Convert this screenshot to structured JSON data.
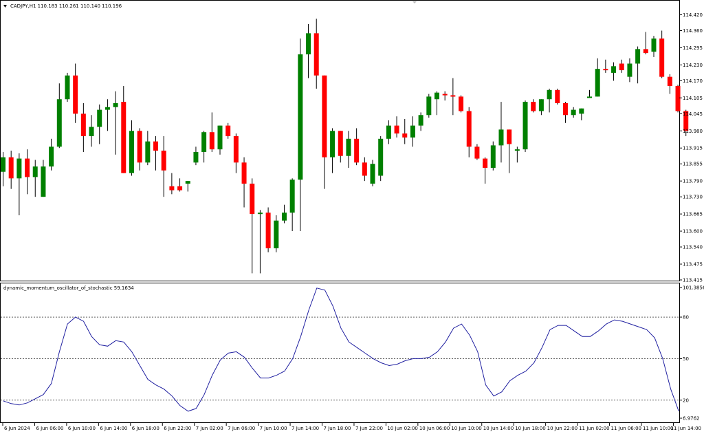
{
  "header": {
    "symbol_line": "CADJPY,H1  110.183 110.261 110.140 110.196"
  },
  "indicator": {
    "title": "dynamic_momentum_oscillator_of_stochastic 59.1634"
  },
  "colors": {
    "bull": "#008000",
    "bear": "#ff0000",
    "wick": "#000000",
    "line": "#1f1fa0",
    "grid": "#000000",
    "background": "#ffffff"
  },
  "chart_data": [
    {
      "type": "candlestick",
      "ylim": [
        113.415,
        114.45
      ],
      "y_ticks": [
        "114.420",
        "114.360",
        "114.295",
        "114.230",
        "114.170",
        "114.105",
        "114.045",
        "113.980",
        "113.915",
        "113.855",
        "113.790",
        "113.730",
        "113.665",
        "113.600",
        "113.540",
        "113.475",
        "113.415"
      ],
      "x_labels": [
        "6 Jun 2024",
        "6 Jun 06:00",
        "6 Jun 10:00",
        "6 Jun 14:00",
        "6 Jun 18:00",
        "6 Jun 22:00",
        "7 Jun 02:00",
        "7 Jun 06:00",
        "7 Jun 10:00",
        "7 Jun 14:00",
        "7 Jun 18:00",
        "7 Jun 22:00",
        "10 Jun 02:00",
        "10 Jun 06:00",
        "10 Jun 10:00",
        "10 Jun 14:00",
        "10 Jun 18:00",
        "10 Jun 22:00",
        "11 Jun 02:00",
        "11 Jun 06:00",
        "11 Jun 10:00",
        "11 Jun 14:00"
      ],
      "candles": [
        {
          "o": 113.825,
          "h": 113.9,
          "l": 113.77,
          "c": 113.88
        },
        {
          "o": 113.88,
          "h": 113.905,
          "l": 113.76,
          "c": 113.8
        },
        {
          "o": 113.8,
          "h": 113.895,
          "l": 113.66,
          "c": 113.875
        },
        {
          "o": 113.875,
          "h": 113.91,
          "l": 113.74,
          "c": 113.805
        },
        {
          "o": 113.805,
          "h": 113.87,
          "l": 113.73,
          "c": 113.845
        },
        {
          "o": 113.73,
          "h": 113.87,
          "l": 113.73,
          "c": 113.845
        },
        {
          "o": 113.845,
          "h": 113.95,
          "l": 113.83,
          "c": 113.92
        },
        {
          "o": 113.92,
          "h": 114.16,
          "l": 113.915,
          "c": 114.1
        },
        {
          "o": 114.1,
          "h": 114.2,
          "l": 114.09,
          "c": 114.19
        },
        {
          "o": 114.19,
          "h": 114.235,
          "l": 114.01,
          "c": 114.045
        },
        {
          "o": 114.045,
          "h": 114.085,
          "l": 113.9,
          "c": 113.96
        },
        {
          "o": 113.96,
          "h": 114.04,
          "l": 113.92,
          "c": 113.995
        },
        {
          "o": 113.995,
          "h": 114.08,
          "l": 113.93,
          "c": 114.06
        },
        {
          "o": 114.06,
          "h": 114.1,
          "l": 113.98,
          "c": 114.07
        },
        {
          "o": 114.07,
          "h": 114.13,
          "l": 113.89,
          "c": 114.085
        },
        {
          "o": 114.09,
          "h": 114.15,
          "l": 113.82,
          "c": 113.82
        },
        {
          "o": 113.82,
          "h": 114.02,
          "l": 113.81,
          "c": 113.98
        },
        {
          "o": 113.98,
          "h": 113.99,
          "l": 113.83,
          "c": 113.86
        },
        {
          "o": 113.86,
          "h": 113.98,
          "l": 113.85,
          "c": 113.94
        },
        {
          "o": 113.94,
          "h": 113.96,
          "l": 113.83,
          "c": 113.905
        },
        {
          "o": 113.905,
          "h": 113.96,
          "l": 113.73,
          "c": 113.83
        },
        {
          "o": 113.77,
          "h": 113.82,
          "l": 113.74,
          "c": 113.755
        },
        {
          "o": 113.77,
          "h": 113.8,
          "l": 113.75,
          "c": 113.755
        },
        {
          "o": 113.78,
          "h": 113.79,
          "l": 113.75,
          "c": 113.79
        },
        {
          "o": 113.86,
          "h": 113.92,
          "l": 113.85,
          "c": 113.9
        },
        {
          "o": 113.9,
          "h": 113.98,
          "l": 113.86,
          "c": 113.975
        },
        {
          "o": 113.975,
          "h": 114.05,
          "l": 113.9,
          "c": 113.91
        },
        {
          "o": 113.91,
          "h": 114.0,
          "l": 113.89,
          "c": 114.0
        },
        {
          "o": 114.0,
          "h": 114.01,
          "l": 113.95,
          "c": 113.96
        },
        {
          "o": 113.96,
          "h": 113.97,
          "l": 113.82,
          "c": 113.86
        },
        {
          "o": 113.86,
          "h": 113.88,
          "l": 113.69,
          "c": 113.78
        },
        {
          "o": 113.78,
          "h": 113.8,
          "l": 113.44,
          "c": 113.665
        },
        {
          "o": 113.665,
          "h": 113.68,
          "l": 113.44,
          "c": 113.67
        },
        {
          "o": 113.67,
          "h": 113.69,
          "l": 113.52,
          "c": 113.535
        },
        {
          "o": 113.535,
          "h": 113.66,
          "l": 113.52,
          "c": 113.64
        },
        {
          "o": 113.64,
          "h": 113.7,
          "l": 113.63,
          "c": 113.67
        },
        {
          "o": 113.67,
          "h": 113.8,
          "l": 113.6,
          "c": 113.795
        },
        {
          "o": 113.795,
          "h": 114.33,
          "l": 113.6,
          "c": 114.27
        },
        {
          "o": 114.27,
          "h": 114.385,
          "l": 114.18,
          "c": 114.35
        },
        {
          "o": 114.35,
          "h": 114.405,
          "l": 114.14,
          "c": 114.19
        },
        {
          "o": 114.19,
          "h": 114.19,
          "l": 113.76,
          "c": 113.88
        },
        {
          "o": 113.88,
          "h": 113.99,
          "l": 113.82,
          "c": 113.98
        },
        {
          "o": 113.98,
          "h": 113.98,
          "l": 113.86,
          "c": 113.885
        },
        {
          "o": 113.885,
          "h": 113.98,
          "l": 113.84,
          "c": 113.95
        },
        {
          "o": 113.95,
          "h": 113.99,
          "l": 113.85,
          "c": 113.86
        },
        {
          "o": 113.86,
          "h": 113.88,
          "l": 113.79,
          "c": 113.81
        },
        {
          "o": 113.78,
          "h": 113.87,
          "l": 113.77,
          "c": 113.855
        },
        {
          "o": 113.81,
          "h": 113.96,
          "l": 113.79,
          "c": 113.95
        },
        {
          "o": 113.95,
          "h": 114.02,
          "l": 113.93,
          "c": 114.0
        },
        {
          "o": 114.0,
          "h": 114.035,
          "l": 113.955,
          "c": 113.97
        },
        {
          "o": 113.97,
          "h": 114.025,
          "l": 113.93,
          "c": 113.955
        },
        {
          "o": 113.955,
          "h": 114.035,
          "l": 113.92,
          "c": 114.0
        },
        {
          "o": 114.0,
          "h": 114.05,
          "l": 113.98,
          "c": 114.04
        },
        {
          "o": 114.04,
          "h": 114.12,
          "l": 114.03,
          "c": 114.11
        },
        {
          "o": 114.1,
          "h": 114.13,
          "l": 114.04,
          "c": 114.125
        },
        {
          "o": 114.12,
          "h": 114.13,
          "l": 114.095,
          "c": 114.115
        },
        {
          "o": 114.115,
          "h": 114.18,
          "l": 114.04,
          "c": 114.11
        },
        {
          "o": 114.11,
          "h": 114.115,
          "l": 114.05,
          "c": 114.055
        },
        {
          "o": 114.055,
          "h": 114.07,
          "l": 113.88,
          "c": 113.92
        },
        {
          "o": 113.92,
          "h": 113.93,
          "l": 113.87,
          "c": 113.875
        },
        {
          "o": 113.875,
          "h": 113.88,
          "l": 113.78,
          "c": 113.84
        },
        {
          "o": 113.84,
          "h": 113.94,
          "l": 113.83,
          "c": 113.925
        },
        {
          "o": 113.925,
          "h": 114.09,
          "l": 113.86,
          "c": 113.985
        },
        {
          "o": 113.985,
          "h": 113.985,
          "l": 113.82,
          "c": 113.93
        },
        {
          "o": 113.905,
          "h": 113.92,
          "l": 113.86,
          "c": 113.91
        },
        {
          "o": 113.91,
          "h": 114.095,
          "l": 113.9,
          "c": 114.09
        },
        {
          "o": 114.09,
          "h": 114.1,
          "l": 114.05,
          "c": 114.055
        },
        {
          "o": 114.055,
          "h": 114.1,
          "l": 114.04,
          "c": 114.1
        },
        {
          "o": 114.1,
          "h": 114.14,
          "l": 114.05,
          "c": 114.135
        },
        {
          "o": 114.135,
          "h": 114.14,
          "l": 114.08,
          "c": 114.085
        },
        {
          "o": 114.085,
          "h": 114.09,
          "l": 114.01,
          "c": 114.04
        },
        {
          "o": 114.04,
          "h": 114.07,
          "l": 114.03,
          "c": 114.06
        },
        {
          "o": 114.045,
          "h": 114.065,
          "l": 114.02,
          "c": 114.065
        },
        {
          "o": 114.105,
          "h": 114.135,
          "l": 114.105,
          "c": 114.11
        },
        {
          "o": 114.11,
          "h": 114.255,
          "l": 114.11,
          "c": 114.215
        },
        {
          "o": 114.215,
          "h": 114.25,
          "l": 114.2,
          "c": 114.21
        },
        {
          "o": 114.2,
          "h": 114.24,
          "l": 114.17,
          "c": 114.225
        },
        {
          "o": 114.235,
          "h": 114.25,
          "l": 114.2,
          "c": 114.21
        },
        {
          "o": 114.185,
          "h": 114.255,
          "l": 114.165,
          "c": 114.235
        },
        {
          "o": 114.235,
          "h": 114.3,
          "l": 114.16,
          "c": 114.29
        },
        {
          "o": 114.29,
          "h": 114.355,
          "l": 114.27,
          "c": 114.275
        },
        {
          "o": 114.28,
          "h": 114.34,
          "l": 114.26,
          "c": 114.33
        },
        {
          "o": 114.33,
          "h": 114.36,
          "l": 114.18,
          "c": 114.185
        },
        {
          "o": 114.185,
          "h": 114.195,
          "l": 114.12,
          "c": 114.15
        },
        {
          "o": 114.15,
          "h": 114.155,
          "l": 114.05,
          "c": 114.055
        },
        {
          "o": 114.055,
          "h": 114.06,
          "l": 113.96,
          "c": 113.98
        }
      ]
    },
    {
      "type": "line",
      "series_name": "dynamic_momentum_oscillator_of_stochastic",
      "ylim": [
        6.9762,
        101.3856
      ],
      "y_ticks": [
        "101.3856",
        "80",
        "50",
        "20",
        "6.9762"
      ],
      "levels": [
        80,
        50,
        20
      ],
      "values": [
        19.5,
        17.5,
        16.5,
        18,
        21,
        24,
        32,
        55,
        75,
        80,
        77,
        66,
        60,
        59,
        63,
        62,
        55,
        45,
        35,
        31,
        28,
        23,
        16,
        12,
        14,
        24,
        38,
        49,
        54,
        55,
        51,
        43,
        36,
        36,
        38,
        41,
        50,
        66,
        85,
        101,
        99.5,
        88,
        72,
        62,
        58,
        54,
        50,
        47,
        45,
        46,
        48.5,
        50,
        50,
        51,
        55,
        62,
        72,
        75,
        67,
        55,
        31,
        23,
        26,
        34,
        38,
        41,
        47,
        58,
        71,
        74,
        74,
        70,
        66,
        66,
        70,
        75,
        78,
        77,
        75,
        73,
        71,
        65,
        50,
        28,
        12
      ]
    }
  ]
}
